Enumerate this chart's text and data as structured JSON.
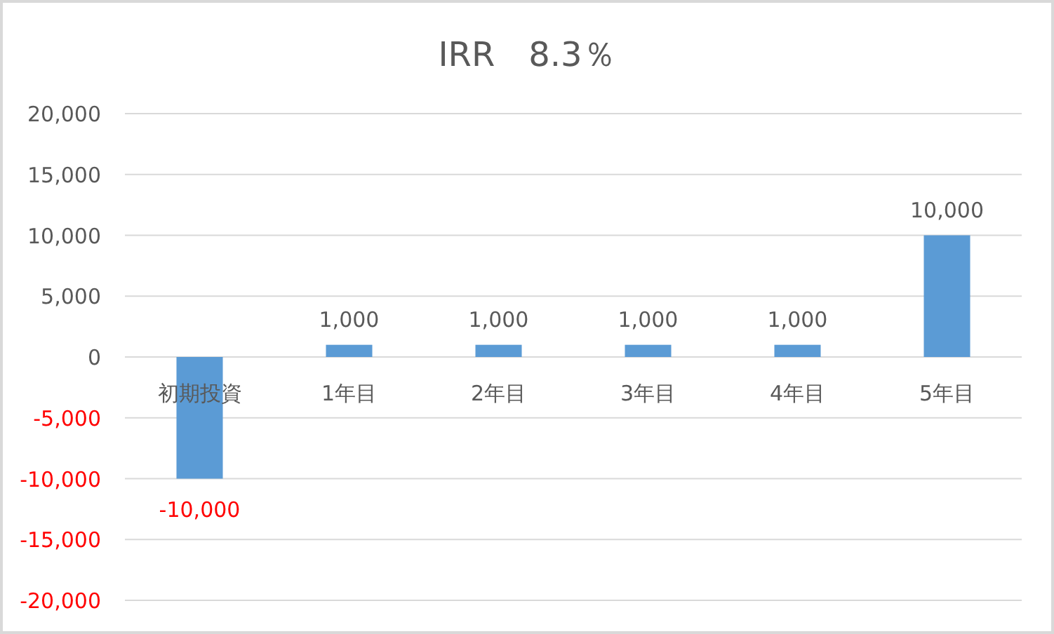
{
  "chart_data": {
    "type": "bar",
    "title": "IRR　8.3％",
    "categories": [
      "初期投資",
      "1年目",
      "2年目",
      "3年目",
      "4年目",
      "5年目"
    ],
    "values": [
      -10000,
      1000,
      1000,
      1000,
      1000,
      10000
    ],
    "color": "#5b9bd5",
    "value_labels": [
      "-10,000",
      "1,000",
      "1,000",
      "1,000",
      "1,000",
      "10,000"
    ],
    "ylim": [
      -20000,
      20000
    ],
    "yticks": [
      {
        "value": -20000,
        "label": "-20,000"
      },
      {
        "value": -15000,
        "label": "-15,000"
      },
      {
        "value": -10000,
        "label": "-10,000"
      },
      {
        "value": -5000,
        "label": "-5,000"
      },
      0,
      {
        "value": 5000,
        "label": "5,000"
      },
      {
        "value": 10000,
        "label": "10,000"
      },
      {
        "value": 15000,
        "label": "15,000"
      },
      {
        "value": 20000,
        "label": "20,000"
      }
    ],
    "grid": "y"
  }
}
